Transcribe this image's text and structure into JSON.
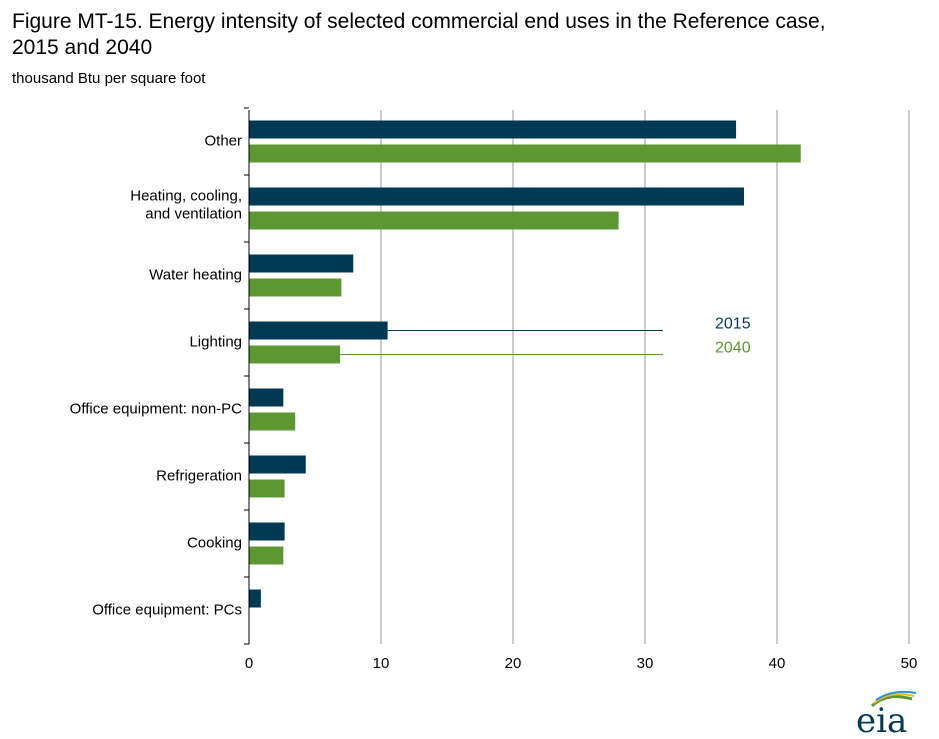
{
  "title_line1": "Figure MT-15. Energy intensity of selected commercial end uses in the Reference case,",
  "title_line2": "2015 and 2040",
  "units_label": "thousand Btu per square foot",
  "logo_text": "eia",
  "colors": {
    "series_2015": "#003953",
    "series_2040": "#5d9732",
    "grid": "#9a9a9a",
    "axis": "#000000"
  },
  "chart_data": {
    "type": "bar",
    "orientation": "horizontal",
    "title": "Figure MT-15. Energy intensity of selected commercial end uses in the Reference case, 2015 and 2040",
    "xlabel": "thousand Btu per square foot",
    "ylabel": "",
    "xlim": [
      0,
      50
    ],
    "xticks": [
      0,
      10,
      20,
      30,
      40,
      50
    ],
    "grid": true,
    "legend_placement": "right, beside Lighting",
    "categories": [
      [
        "Other"
      ],
      [
        "Heating, cooling,",
        "and ventilation"
      ],
      [
        "Water heating"
      ],
      [
        "Lighting"
      ],
      [
        "Office equipment: non-PC"
      ],
      [
        "Refrigeration"
      ],
      [
        "Cooking"
      ],
      [
        "Office equipment: PCs"
      ]
    ],
    "series": [
      {
        "name": "2015",
        "color": "#003953",
        "values": [
          36.9,
          37.5,
          7.9,
          10.5,
          2.6,
          4.3,
          2.7,
          0.9
        ]
      },
      {
        "name": "2040",
        "color": "#5d9732",
        "values": [
          41.8,
          28.0,
          7.0,
          6.9,
          3.5,
          2.7,
          2.6,
          null
        ]
      }
    ]
  }
}
